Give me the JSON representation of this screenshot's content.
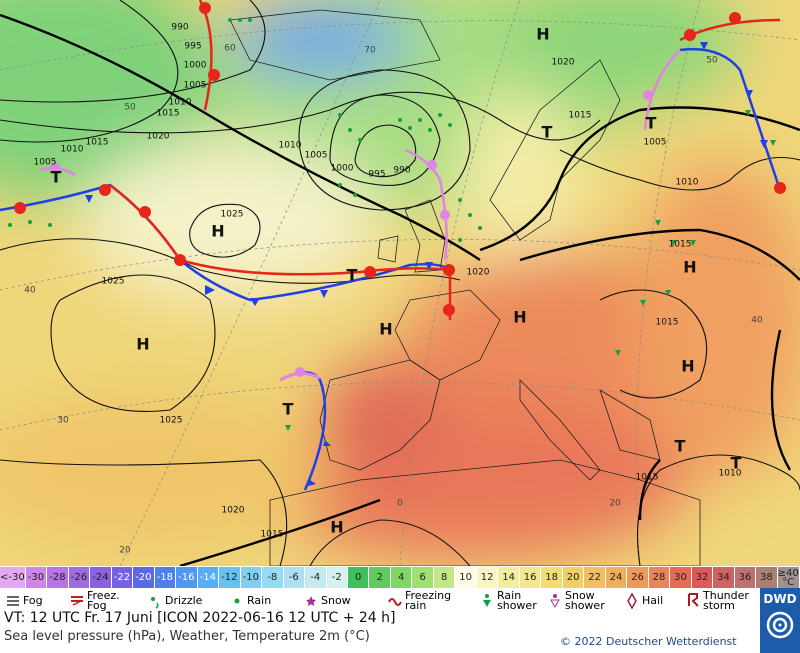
{
  "map": {
    "centers": [
      "H",
      "H",
      "H",
      "H",
      "H",
      "H",
      "H",
      "H",
      "T",
      "T",
      "T",
      "T",
      "T",
      "T",
      "T"
    ],
    "isobar_labels": [
      "990",
      "995",
      "1000",
      "1005",
      "1010",
      "1015",
      "1020",
      "1010",
      "1015",
      "1005",
      "1025",
      "1025",
      "1025",
      "1020",
      "1015",
      "1010",
      "1005",
      "1000",
      "995",
      "990",
      "1020",
      "1015",
      "1005",
      "1010",
      "1015",
      "1015",
      "1020",
      "1015",
      "1010"
    ],
    "grid_labels": [
      "60",
      "50",
      "40",
      "30",
      "20",
      "70",
      "50",
      "40",
      "0",
      "20"
    ]
  },
  "scale": {
    "labels": [
      "<-30",
      -30,
      -28,
      -26,
      -24,
      -22,
      -20,
      -18,
      -16,
      -14,
      -12,
      -10,
      -8,
      -6,
      -4,
      -2,
      0,
      2,
      4,
      6,
      8,
      10,
      12,
      14,
      16,
      18,
      20,
      22,
      24,
      26,
      28,
      30,
      32,
      34,
      36,
      38,
      "≥40 °C"
    ],
    "colors": [
      "#e4a8f2",
      "#cf84e8",
      "#b873e4",
      "#a06ae2",
      "#8a62e0",
      "#7462e2",
      "#5c68e4",
      "#4f80ea",
      "#4f98f0",
      "#57aef2",
      "#67c0f2",
      "#7ecff2",
      "#96dbf2",
      "#addff0",
      "#c4eaf0",
      "#d4f1ee",
      "#3fbf5e",
      "#5fcb5f",
      "#7fd662",
      "#a0df70",
      "#c2e884",
      "#fffbe6",
      "#f7f6c4",
      "#f1ef9f",
      "#f2e78c",
      "#f2dd72",
      "#f2cf63",
      "#f1bf60",
      "#f0ae5d",
      "#ef9858",
      "#ec8357",
      "#e66b56",
      "#de5a58",
      "#d06262",
      "#c07070",
      "#ac8070",
      "#a09090"
    ]
  },
  "symbols": [
    "Fog",
    "Freez. Fog",
    "Drizzle",
    "Rain",
    "Snow",
    "Freezing rain",
    "Rain shower",
    "Snow shower",
    "Hail",
    "Thunder storm"
  ],
  "footer": {
    "valid_time": "VT: 12 UTC Fr.  17 Juni [ICON 2022-06-16  12 UTC + 24 h]",
    "description": "Sea level pressure (hPa), Weather, Temperature 2m (°C)",
    "copyright": "© 2022 Deutscher Wetterdienst",
    "logo": "DWD"
  }
}
